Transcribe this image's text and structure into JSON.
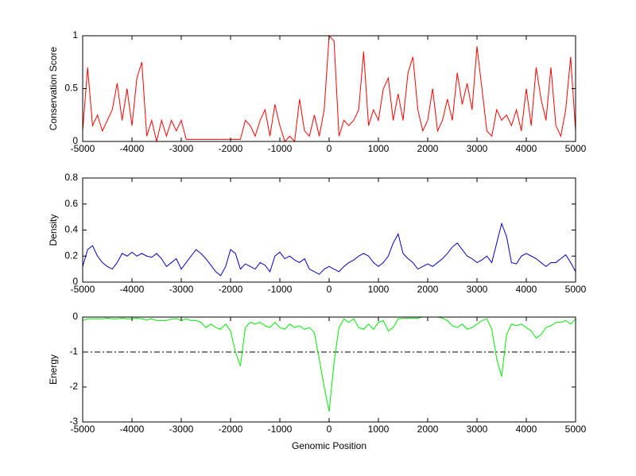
{
  "chart_data": [
    {
      "type": "line",
      "ylabel": "Conservation Score",
      "xlim": [
        -5000,
        5000
      ],
      "ylim": [
        0,
        1
      ],
      "xticks": [
        -5000,
        -4000,
        -3000,
        -2000,
        -1000,
        0,
        1000,
        2000,
        3000,
        4000,
        5000
      ],
      "yticks": [
        0,
        0.5,
        1
      ],
      "x": [
        -5000,
        -4900,
        -4800,
        -4700,
        -4600,
        -4500,
        -4400,
        -4300,
        -4200,
        -4100,
        -4000,
        -3900,
        -3800,
        -3700,
        -3600,
        -3500,
        -3400,
        -3300,
        -3200,
        -3100,
        -3000,
        -2900,
        -2800,
        -2700,
        -2600,
        -2500,
        -2400,
        -2300,
        -2200,
        -2100,
        -2000,
        -1900,
        -1800,
        -1700,
        -1600,
        -1500,
        -1400,
        -1300,
        -1200,
        -1100,
        -1000,
        -900,
        -800,
        -700,
        -600,
        -500,
        -400,
        -300,
        -200,
        -100,
        0,
        100,
        200,
        300,
        400,
        500,
        600,
        700,
        800,
        900,
        1000,
        1100,
        1200,
        1300,
        1400,
        1500,
        1600,
        1700,
        1800,
        1900,
        2000,
        2100,
        2200,
        2300,
        2400,
        2500,
        2600,
        2700,
        2800,
        2900,
        3000,
        3100,
        3200,
        3300,
        3400,
        3500,
        3600,
        3700,
        3800,
        3900,
        4000,
        4100,
        4200,
        4300,
        4400,
        4500,
        4600,
        4700,
        4800,
        4900,
        5000
      ],
      "series": [
        {
          "color": "#ff0000",
          "values": [
            0.1,
            0.7,
            0.15,
            0.25,
            0.1,
            0.2,
            0.3,
            0.55,
            0.2,
            0.5,
            0.15,
            0.6,
            0.75,
            0.05,
            0.2,
            0.0,
            0.2,
            0.05,
            0.2,
            0.1,
            0.2,
            0.02,
            0.02,
            0.02,
            0.02,
            0.02,
            0.02,
            0.02,
            0.02,
            0.02,
            0.02,
            0.02,
            0.02,
            0.2,
            0.15,
            0.05,
            0.2,
            0.3,
            0.05,
            0.35,
            0.15,
            0.0,
            0.05,
            0.0,
            0.4,
            0.1,
            0.05,
            0.25,
            0.05,
            0.3,
            1.0,
            0.95,
            0.05,
            0.2,
            0.15,
            0.2,
            0.3,
            0.85,
            0.15,
            0.3,
            0.2,
            0.5,
            0.6,
            0.2,
            0.45,
            0.2,
            0.65,
            0.8,
            0.3,
            0.1,
            0.2,
            0.5,
            0.1,
            0.2,
            0.4,
            0.2,
            0.65,
            0.35,
            0.55,
            0.3,
            0.9,
            0.5,
            0.1,
            0.05,
            0.3,
            0.2,
            0.25,
            0.15,
            0.3,
            0.1,
            0.5,
            0.15,
            0.7,
            0.4,
            0.2,
            0.7,
            0.15,
            0.05,
            0.3,
            0.8,
            0.1
          ]
        }
      ]
    },
    {
      "type": "line",
      "ylabel": "Density",
      "xlim": [
        -5000,
        5000
      ],
      "ylim": [
        0,
        0.8
      ],
      "xticks": [
        -5000,
        -4000,
        -3000,
        -2000,
        -1000,
        0,
        1000,
        2000,
        3000,
        4000,
        5000
      ],
      "yticks": [
        0,
        0.2,
        0.4,
        0.6,
        0.8
      ],
      "x": [
        -5000,
        -4900,
        -4800,
        -4700,
        -4600,
        -4500,
        -4400,
        -4300,
        -4200,
        -4100,
        -4000,
        -3900,
        -3800,
        -3700,
        -3600,
        -3500,
        -3400,
        -3300,
        -3200,
        -3100,
        -3000,
        -2900,
        -2800,
        -2700,
        -2600,
        -2500,
        -2400,
        -2300,
        -2200,
        -2100,
        -2000,
        -1900,
        -1800,
        -1700,
        -1600,
        -1500,
        -1400,
        -1300,
        -1200,
        -1100,
        -1000,
        -900,
        -800,
        -700,
        -600,
        -500,
        -400,
        -300,
        -200,
        -100,
        0,
        100,
        200,
        300,
        400,
        500,
        600,
        700,
        800,
        900,
        1000,
        1100,
        1200,
        1300,
        1400,
        1500,
        1600,
        1700,
        1800,
        1900,
        2000,
        2100,
        2200,
        2300,
        2400,
        2500,
        2600,
        2700,
        2800,
        2900,
        3000,
        3100,
        3200,
        3300,
        3400,
        3500,
        3600,
        3700,
        3800,
        3900,
        4000,
        4100,
        4200,
        4300,
        4400,
        4500,
        4600,
        4700,
        4800,
        4900,
        5000
      ],
      "series": [
        {
          "color": "#0000cc",
          "values": [
            0.12,
            0.25,
            0.28,
            0.2,
            0.15,
            0.12,
            0.1,
            0.15,
            0.22,
            0.2,
            0.23,
            0.2,
            0.22,
            0.2,
            0.19,
            0.22,
            0.18,
            0.12,
            0.15,
            0.18,
            0.1,
            0.15,
            0.2,
            0.25,
            0.22,
            0.18,
            0.13,
            0.08,
            0.05,
            0.12,
            0.25,
            0.22,
            0.1,
            0.14,
            0.12,
            0.1,
            0.15,
            0.13,
            0.08,
            0.2,
            0.23,
            0.18,
            0.2,
            0.17,
            0.15,
            0.18,
            0.1,
            0.08,
            0.06,
            0.1,
            0.12,
            0.1,
            0.08,
            0.12,
            0.15,
            0.17,
            0.2,
            0.22,
            0.2,
            0.15,
            0.12,
            0.15,
            0.2,
            0.3,
            0.37,
            0.22,
            0.18,
            0.15,
            0.1,
            0.12,
            0.14,
            0.12,
            0.15,
            0.18,
            0.22,
            0.27,
            0.3,
            0.25,
            0.2,
            0.18,
            0.15,
            0.17,
            0.2,
            0.15,
            0.3,
            0.45,
            0.35,
            0.15,
            0.14,
            0.2,
            0.22,
            0.2,
            0.18,
            0.15,
            0.12,
            0.15,
            0.15,
            0.18,
            0.21,
            0.15,
            0.08
          ]
        }
      ]
    },
    {
      "type": "line",
      "ylabel": "Energy",
      "xlabel": "Genomic Position",
      "xlim": [
        -5000,
        5000
      ],
      "ylim": [
        -3,
        0
      ],
      "xticks": [
        -5000,
        -4000,
        -3000,
        -2000,
        -1000,
        0,
        1000,
        2000,
        3000,
        4000,
        5000
      ],
      "yticks": [
        -3,
        -2,
        -1,
        0
      ],
      "hline": -1,
      "hline_color": "#000000",
      "x": [
        -5000,
        -4900,
        -4800,
        -4700,
        -4600,
        -4500,
        -4400,
        -4300,
        -4200,
        -4100,
        -4000,
        -3900,
        -3800,
        -3700,
        -3600,
        -3500,
        -3400,
        -3300,
        -3200,
        -3100,
        -3000,
        -2900,
        -2800,
        -2700,
        -2600,
        -2500,
        -2400,
        -2300,
        -2200,
        -2100,
        -2000,
        -1900,
        -1800,
        -1700,
        -1600,
        -1500,
        -1400,
        -1300,
        -1200,
        -1100,
        -1000,
        -900,
        -800,
        -700,
        -600,
        -500,
        -400,
        -300,
        -200,
        -100,
        0,
        100,
        200,
        300,
        400,
        500,
        600,
        700,
        800,
        900,
        1000,
        1100,
        1200,
        1300,
        1400,
        1500,
        1600,
        1700,
        1800,
        1900,
        2000,
        2100,
        2200,
        2300,
        2400,
        2500,
        2600,
        2700,
        2800,
        2900,
        3000,
        3100,
        3200,
        3300,
        3400,
        3500,
        3600,
        3700,
        3800,
        3900,
        4000,
        4100,
        4200,
        4300,
        4400,
        4500,
        4600,
        4700,
        4800,
        4900,
        5000
      ],
      "series": [
        {
          "color": "#00ee00",
          "values": [
            -0.1,
            -0.05,
            -0.05,
            -0.05,
            -0.05,
            -0.03,
            -0.05,
            -0.05,
            -0.03,
            -0.05,
            -0.05,
            -0.03,
            -0.05,
            -0.08,
            -0.05,
            -0.1,
            -0.1,
            -0.1,
            -0.05,
            -0.05,
            -0.1,
            -0.05,
            -0.1,
            -0.1,
            -0.15,
            -0.3,
            -0.2,
            -0.3,
            -0.35,
            -0.2,
            -0.4,
            -1.0,
            -1.4,
            -0.3,
            -0.15,
            -0.2,
            -0.15,
            -0.25,
            -0.3,
            -0.15,
            -0.3,
            -0.35,
            -0.2,
            -0.3,
            -0.25,
            -0.35,
            -0.3,
            -0.45,
            -1.2,
            -2.0,
            -2.7,
            -1.3,
            -0.3,
            -0.05,
            -0.15,
            -0.05,
            -0.3,
            -0.35,
            -0.2,
            -0.35,
            -0.15,
            -0.1,
            -0.4,
            -0.3,
            -0.05,
            -0.03,
            -0.03,
            -0.03,
            -0.03,
            0,
            0,
            0,
            0,
            -0.03,
            -0.1,
            -0.25,
            -0.3,
            -0.2,
            -0.35,
            -0.3,
            -0.2,
            -0.1,
            -0.05,
            -0.35,
            -1.2,
            -1.7,
            -0.5,
            -0.2,
            -0.25,
            -0.2,
            -0.3,
            -0.4,
            -0.6,
            -0.5,
            -0.3,
            -0.25,
            -0.15,
            -0.15,
            -0.1,
            -0.2,
            -0.05
          ]
        }
      ]
    }
  ]
}
